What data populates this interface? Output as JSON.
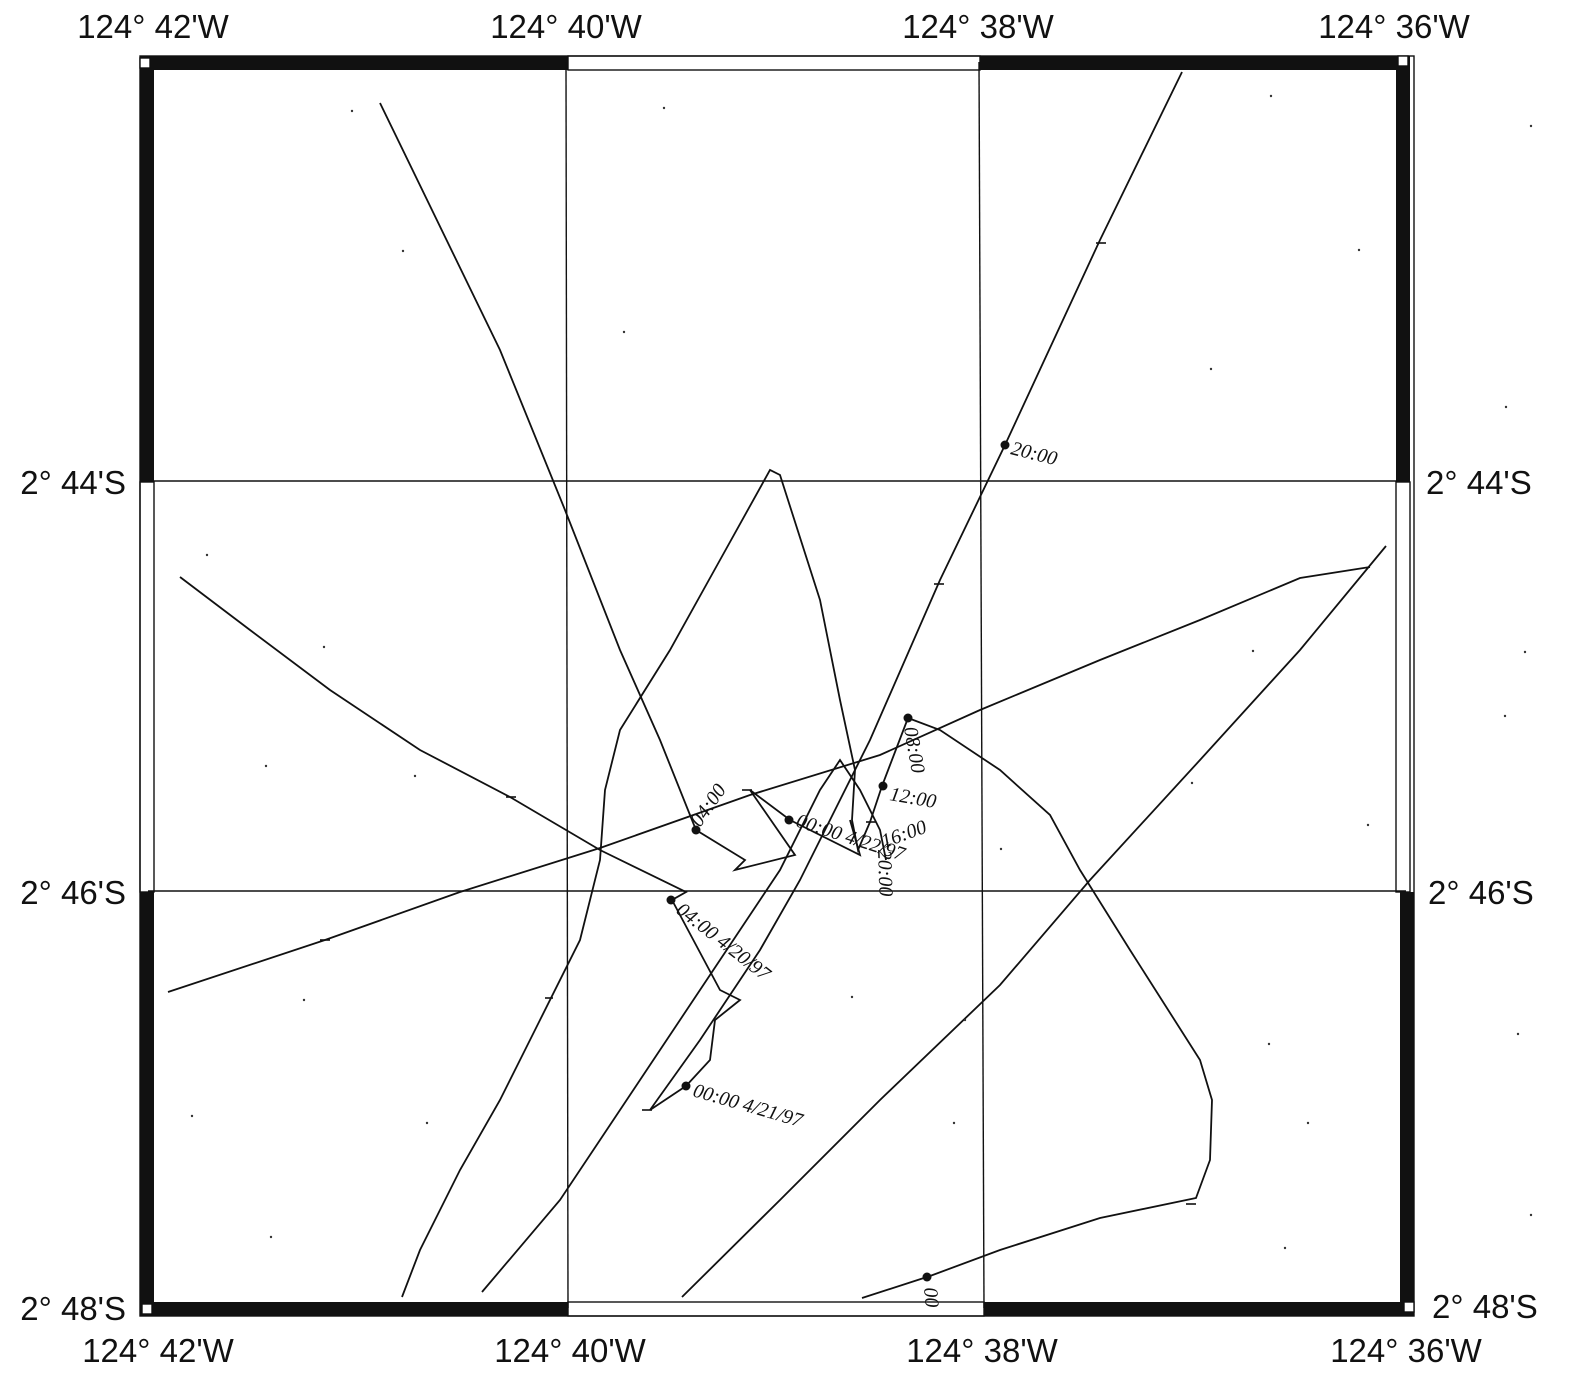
{
  "map": {
    "colors": {
      "ink": "#111111",
      "background": "#ffffff"
    },
    "longitude_labels_top": [
      "124° 42'W",
      "124° 40'W",
      "124° 38'W",
      "124° 36'W"
    ],
    "longitude_labels_bottom": [
      "124° 42'W",
      "124° 40'W",
      "124° 38'W",
      "124° 36'W"
    ],
    "latitude_labels_left": [
      "2° 44'S",
      "2° 46'S",
      "2° 48'S"
    ],
    "latitude_labels_right": [
      "2° 44'S",
      "2° 46'S",
      "2° 48'S"
    ],
    "time_labels": {
      "t2000": "20:00",
      "t0400a": "04:00",
      "t0800": "08:00",
      "t1200": "12:00",
      "t1600": "16:00",
      "t2000b": "20:00",
      "t0000_422": "00:00 4/22/97",
      "t0400_420": "04:00 4/20/97",
      "t0000_421": "00:00 4/21/97",
      "t_bottom": "00"
    }
  }
}
